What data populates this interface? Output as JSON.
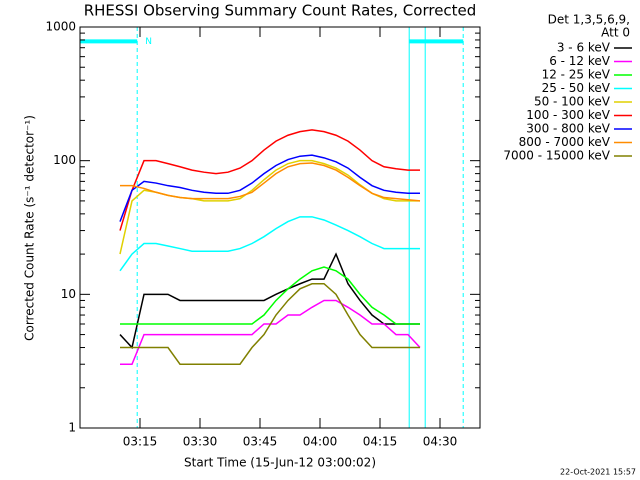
{
  "chart_data": {
    "type": "line",
    "title": "RHESSI Observing Summary Count Rates, Corrected",
    "xlabel": "Start Time (15-Jun-12 03:00:02)",
    "ylabel": "Corrected Count Rate (s⁻¹ detector⁻¹)",
    "legend_header": [
      "Det 1,3,5,6,9,",
      "Att 0"
    ],
    "footer": "22-Oct-2021 15:57",
    "log_y": true,
    "xlim": [
      0,
      100
    ],
    "ylim": [
      1,
      1000
    ],
    "xticks": [
      {
        "value": 15,
        "label": "03:15"
      },
      {
        "value": 30,
        "label": "03:30"
      },
      {
        "value": 45,
        "label": "03:45"
      },
      {
        "value": 60,
        "label": "04:00"
      },
      {
        "value": 75,
        "label": "04:15"
      },
      {
        "value": 90,
        "label": "04:30"
      }
    ],
    "yticks": [
      1,
      10,
      100,
      1000
    ],
    "night": {
      "label": "N",
      "level": 780,
      "intervals": [
        [
          0,
          14.3
        ],
        [
          82.3,
          95.8
        ]
      ]
    },
    "markers": [
      86.3
    ],
    "x": [
      10,
      13,
      16,
      19,
      22,
      25,
      28,
      31,
      34,
      37,
      40,
      43,
      46,
      49,
      52,
      55,
      58,
      61,
      64,
      67,
      70,
      73,
      76,
      79,
      82,
      85
    ],
    "series": [
      {
        "name": "3 - 6 keV",
        "color": "#000000",
        "values": [
          5,
          4,
          10,
          10,
          10,
          9,
          9,
          9,
          9,
          9,
          9,
          9,
          9,
          10,
          11,
          12,
          13,
          13,
          20,
          12,
          9,
          7,
          6,
          6,
          6,
          6
        ]
      },
      {
        "name": "6 - 12 keV",
        "color": "#ff00ff",
        "values": [
          3,
          3,
          5,
          5,
          5,
          5,
          5,
          5,
          5,
          5,
          5,
          5,
          6,
          6,
          7,
          7,
          8,
          9,
          9,
          8,
          7,
          6,
          6,
          5,
          5,
          4
        ]
      },
      {
        "name": "12 - 25 keV",
        "color": "#00ff00",
        "values": [
          6,
          6,
          6,
          6,
          6,
          6,
          6,
          6,
          6,
          6,
          6,
          6,
          7,
          9,
          11,
          13,
          15,
          16,
          15,
          13,
          10,
          8,
          7,
          6,
          6,
          6
        ]
      },
      {
        "name": "25 - 50 keV",
        "color": "#00ffff",
        "values": [
          15,
          20,
          24,
          24,
          23,
          22,
          21,
          21,
          21,
          21,
          22,
          24,
          27,
          31,
          35,
          38,
          38,
          36,
          33,
          30,
          27,
          24,
          22,
          22,
          22,
          22
        ]
      },
      {
        "name": "50 - 100 keV",
        "color": "#e0d000",
        "values": [
          20,
          50,
          60,
          58,
          55,
          53,
          52,
          50,
          50,
          50,
          52,
          60,
          72,
          85,
          95,
          100,
          100,
          95,
          88,
          78,
          66,
          57,
          52,
          50,
          50,
          50
        ]
      },
      {
        "name": "100 - 300 keV",
        "color": "#ff0000",
        "values": [
          30,
          60,
          100,
          100,
          95,
          90,
          85,
          82,
          80,
          82,
          88,
          100,
          120,
          140,
          155,
          165,
          170,
          165,
          155,
          140,
          120,
          100,
          90,
          87,
          85,
          85
        ]
      },
      {
        "name": "300 - 800 keV",
        "color": "#0000ff",
        "values": [
          35,
          60,
          70,
          68,
          65,
          63,
          60,
          58,
          57,
          57,
          60,
          68,
          80,
          92,
          102,
          108,
          110,
          105,
          98,
          88,
          75,
          65,
          60,
          58,
          57,
          57
        ]
      },
      {
        "name": "800 - 7000 keV",
        "color": "#ff8c00",
        "values": [
          65,
          65,
          62,
          58,
          55,
          53,
          52,
          52,
          52,
          52,
          54,
          58,
          68,
          80,
          90,
          95,
          96,
          92,
          85,
          75,
          65,
          57,
          53,
          52,
          51,
          50
        ]
      },
      {
        "name": "7000 - 15000 keV",
        "color": "#808000",
        "values": [
          4,
          4,
          4,
          4,
          4,
          3,
          3,
          3,
          3,
          3,
          3,
          4,
          5,
          7,
          9,
          11,
          12,
          12,
          10,
          7,
          5,
          4,
          4,
          4,
          4,
          4
        ]
      }
    ]
  }
}
